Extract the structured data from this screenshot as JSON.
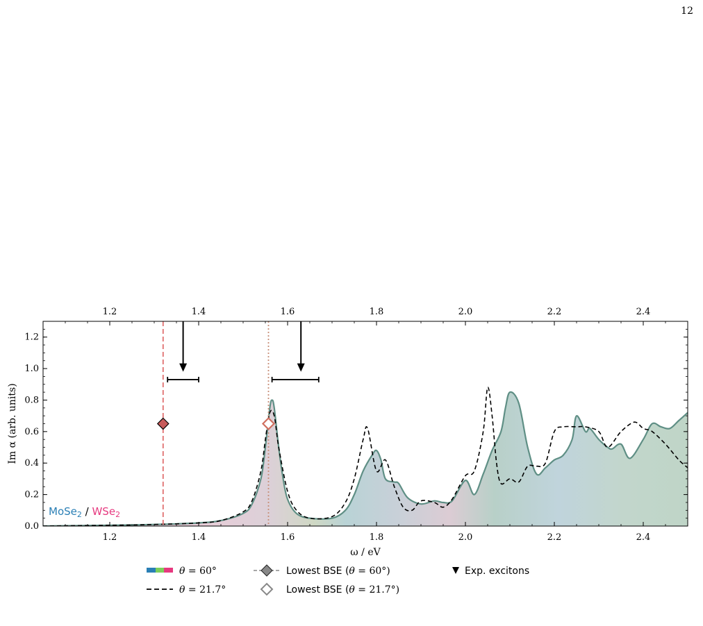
{
  "page": {
    "number": "12"
  },
  "chart_data": {
    "type": "area",
    "xlabel": "ω / eV",
    "ylabel": "Im α (arb. units)",
    "xlim": [
      1.05,
      2.5
    ],
    "ylim": [
      0.0,
      1.3
    ],
    "x_ticks": [
      "1.2",
      "1.4",
      "1.6",
      "1.8",
      "2.0",
      "2.2",
      "2.4"
    ],
    "x_tick_values": [
      1.2,
      1.4,
      1.6,
      1.8,
      2.0,
      2.2,
      2.4
    ],
    "y_ticks": [
      "0.0",
      "0.2",
      "0.4",
      "0.6",
      "0.8",
      "1.0",
      "1.2"
    ],
    "y_tick_values": [
      0.0,
      0.2,
      0.4,
      0.6,
      0.8,
      1.0,
      1.2
    ],
    "top_axis_ticks": true,
    "legend_position": "bottom-outside",
    "inset_labels": {
      "left": "MoSe",
      "left_sub": "2",
      "sep": " / ",
      "right": "WSe",
      "right_sub": "2"
    },
    "colors": {
      "MoSe2": "#2a7fb5",
      "WSe2": "#e6397f",
      "mixed": "#7ccf5c",
      "theta60_line": "#5f8f85",
      "theta21_line": "#000000",
      "bse60_marker": "#c75b5b",
      "bse21_marker": "#d07060",
      "bse60_vline": "#e07070",
      "bse21_vline": "#c8907a"
    },
    "series": [
      {
        "name": "θ = 60°",
        "style": "filled",
        "x": [
          1.05,
          1.2,
          1.3,
          1.4,
          1.45,
          1.5,
          1.52,
          1.54,
          1.55,
          1.56,
          1.565,
          1.57,
          1.58,
          1.59,
          1.6,
          1.62,
          1.65,
          1.7,
          1.73,
          1.75,
          1.77,
          1.79,
          1.8,
          1.81,
          1.82,
          1.84,
          1.85,
          1.87,
          1.9,
          1.93,
          1.95,
          1.97,
          2.0,
          2.02,
          2.04,
          2.06,
          2.08,
          2.09,
          2.1,
          2.12,
          2.14,
          2.16,
          2.18,
          2.2,
          2.22,
          2.24,
          2.25,
          2.27,
          2.28,
          2.3,
          2.32,
          2.33,
          2.35,
          2.37,
          2.4,
          2.42,
          2.44,
          2.46,
          2.48,
          2.5
        ],
        "y": [
          0.0,
          0.005,
          0.01,
          0.02,
          0.035,
          0.08,
          0.14,
          0.3,
          0.5,
          0.75,
          0.8,
          0.75,
          0.5,
          0.3,
          0.17,
          0.08,
          0.05,
          0.05,
          0.1,
          0.2,
          0.35,
          0.45,
          0.48,
          0.42,
          0.3,
          0.28,
          0.27,
          0.18,
          0.14,
          0.16,
          0.15,
          0.16,
          0.29,
          0.2,
          0.33,
          0.48,
          0.6,
          0.75,
          0.85,
          0.78,
          0.5,
          0.33,
          0.37,
          0.42,
          0.45,
          0.55,
          0.7,
          0.6,
          0.62,
          0.55,
          0.5,
          0.49,
          0.52,
          0.43,
          0.55,
          0.65,
          0.63,
          0.62,
          0.67,
          0.72
        ]
      },
      {
        "name": "θ = 21.7°",
        "style": "dashed",
        "x": [
          1.05,
          1.2,
          1.3,
          1.4,
          1.45,
          1.5,
          1.52,
          1.54,
          1.55,
          1.56,
          1.57,
          1.58,
          1.6,
          1.62,
          1.65,
          1.7,
          1.73,
          1.75,
          1.77,
          1.78,
          1.8,
          1.82,
          1.84,
          1.86,
          1.88,
          1.9,
          1.93,
          1.95,
          1.97,
          2.0,
          2.02,
          2.04,
          2.05,
          2.06,
          2.07,
          2.08,
          2.1,
          2.12,
          2.14,
          2.16,
          2.18,
          2.2,
          2.22,
          2.25,
          2.27,
          2.3,
          2.32,
          2.35,
          2.38,
          2.4,
          2.42,
          2.45,
          2.48,
          2.5
        ],
        "y": [
          0.0,
          0.005,
          0.01,
          0.02,
          0.035,
          0.09,
          0.16,
          0.35,
          0.55,
          0.72,
          0.7,
          0.5,
          0.22,
          0.1,
          0.05,
          0.06,
          0.15,
          0.3,
          0.55,
          0.62,
          0.35,
          0.42,
          0.25,
          0.12,
          0.1,
          0.16,
          0.15,
          0.12,
          0.17,
          0.32,
          0.35,
          0.6,
          0.88,
          0.7,
          0.4,
          0.27,
          0.3,
          0.28,
          0.38,
          0.38,
          0.4,
          0.6,
          0.63,
          0.63,
          0.63,
          0.6,
          0.5,
          0.6,
          0.66,
          0.62,
          0.6,
          0.52,
          0.42,
          0.37
        ]
      }
    ],
    "markers": [
      {
        "name": "Lowest BSE (θ = 60°)",
        "x": 1.32,
        "y": 0.65,
        "style": "filled-diamond"
      },
      {
        "name": "Lowest BSE (θ = 21.7°)",
        "x": 1.557,
        "y": 0.65,
        "style": "open-diamond"
      }
    ],
    "vlines": [
      {
        "x": 1.32,
        "style": "dashed",
        "color": "#e07070"
      },
      {
        "x": 1.557,
        "style": "dotted",
        "color": "#c8907a"
      }
    ],
    "exp_excitons": [
      {
        "x": 1.365,
        "y_top": 1.3,
        "y_tip": 0.98,
        "error_lo": 1.33,
        "error_hi": 1.4,
        "error_y": 0.93
      },
      {
        "x": 1.63,
        "y_top": 1.3,
        "y_tip": 0.98,
        "error_lo": 1.565,
        "error_hi": 1.67,
        "error_y": 0.93
      }
    ],
    "legend": [
      {
        "label_pre": "θ",
        "label_post": " = 60°",
        "style": "color-bar"
      },
      {
        "label_pre": "θ",
        "label_post": " = 21.7°",
        "style": "dashed-line"
      },
      {
        "label": "Lowest BSE (",
        "label_theta": "θ",
        "label_tail": " = 60°)",
        "style": "filled-diamond-line"
      },
      {
        "label": "Lowest BSE (",
        "label_theta": "θ",
        "label_tail": " = 21.7°)",
        "style": "open-diamond"
      },
      {
        "label": "Exp. excitons",
        "style": "triangle"
      }
    ]
  }
}
